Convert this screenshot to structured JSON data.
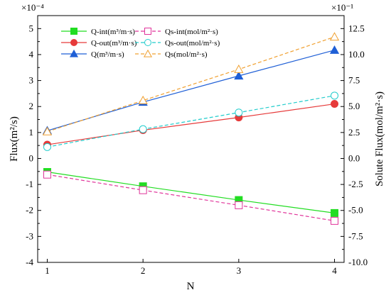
{
  "chart_data": {
    "type": "line",
    "xlabel": "N",
    "ylabel_left": "Flux(m²/s)",
    "ylabel_right": "Solute Flux(mol/m²·s)",
    "left_multiplier": "×10⁻⁴",
    "right_multiplier": "×10⁻¹",
    "x": [
      1,
      2,
      3,
      4
    ],
    "xlim": [
      0.9,
      4.1
    ],
    "ylim_left": [
      -4,
      5.5
    ],
    "ylim_right": [
      -10,
      13.75
    ],
    "x_ticks": [
      "1",
      "2",
      "3",
      "4"
    ],
    "left_ticks": [
      "-4",
      "-3",
      "-2",
      "-1",
      "0",
      "1",
      "2",
      "3",
      "4",
      "5"
    ],
    "right_ticks": [
      "-10.0",
      "-7.5",
      "-5.0",
      "-2.5",
      "0.0",
      "2.5",
      "5.0",
      "7.5",
      "10.0",
      "12.5"
    ],
    "legend_placement": "top-left",
    "series": [
      {
        "name": "Q-int(m³/m·s)",
        "axis": "left",
        "values": [
          -0.52,
          -1.07,
          -1.6,
          -2.1
        ],
        "color": "#22dd22",
        "marker": "square",
        "dashed": false
      },
      {
        "name": "Q-out(m³/m·s)",
        "axis": "left",
        "values": [
          0.53,
          1.09,
          1.58,
          2.1
        ],
        "color": "#e63a3a",
        "marker": "circle",
        "dashed": false
      },
      {
        "name": "Q(m³/m·s)",
        "axis": "left",
        "values": [
          1.07,
          2.17,
          3.18,
          4.17
        ],
        "color": "#1f5fd6",
        "marker": "triangle",
        "dashed": false
      },
      {
        "name": "Qs-int(mol/m²·s)",
        "axis": "right",
        "values": [
          -1.55,
          -3.05,
          -4.5,
          -6.0
        ],
        "color": "#e0339a",
        "marker": "square-open",
        "dashed": true
      },
      {
        "name": "Qs-out(mol/m²·s)",
        "axis": "right",
        "values": [
          1.1,
          2.82,
          4.42,
          6.05
        ],
        "color": "#22cccc",
        "marker": "circle-open",
        "dashed": true
      },
      {
        "name": "Qs(mol/m²·s)",
        "axis": "right",
        "values": [
          2.58,
          5.58,
          8.58,
          11.7
        ],
        "color": "#f0a030",
        "marker": "triangle-open",
        "dashed": true
      }
    ]
  }
}
